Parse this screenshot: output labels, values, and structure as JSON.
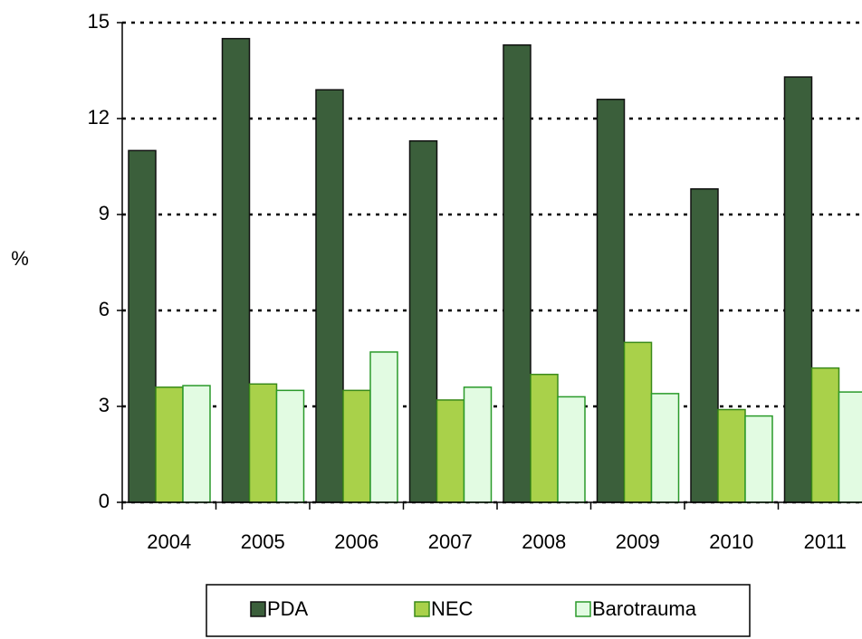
{
  "chart_data": {
    "type": "bar",
    "categories": [
      "2004",
      "2005",
      "2006",
      "2007",
      "2008",
      "2009",
      "2010",
      "2011"
    ],
    "series": [
      {
        "name": "PDA",
        "color": "#3b5f3b",
        "values": [
          11.0,
          14.5,
          12.9,
          11.3,
          14.3,
          12.6,
          9.8,
          13.3
        ]
      },
      {
        "name": "NEC",
        "color": "#a9d14a",
        "values": [
          3.6,
          3.7,
          3.5,
          3.2,
          4.0,
          5.0,
          2.9,
          4.2
        ]
      },
      {
        "name": "Barotrauma",
        "color": "#e2fbe2",
        "values": [
          3.65,
          3.5,
          4.7,
          3.6,
          3.3,
          3.4,
          2.7,
          3.45
        ]
      }
    ],
    "y_label": "%",
    "ylim": [
      0,
      15
    ],
    "yticks": [
      0,
      3,
      6,
      9,
      12,
      15
    ],
    "grid": true,
    "legend": "bottom"
  }
}
